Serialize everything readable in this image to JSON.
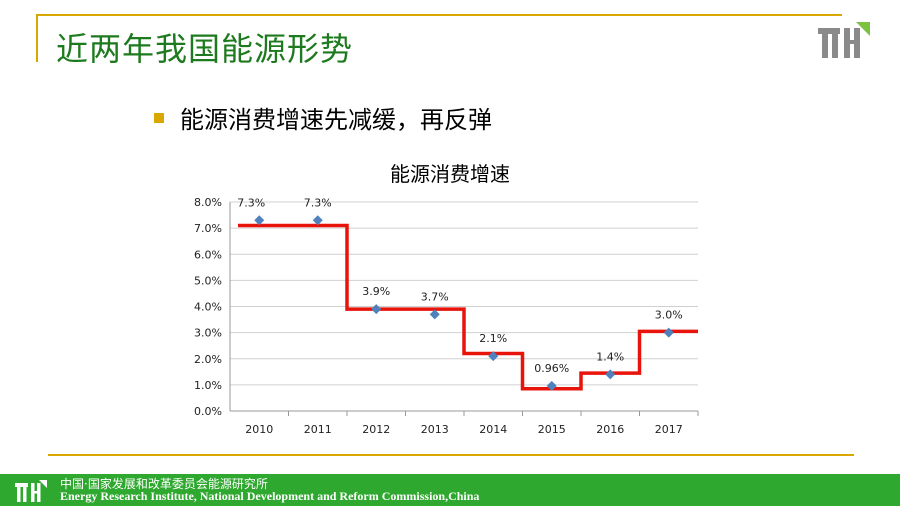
{
  "slide": {
    "title": "近两年我国能源形势",
    "bullet": "能源消费增速先减缓，再反弹"
  },
  "footer": {
    "cn": "中国·国家发展和改革委员会能源研究所",
    "en": "Energy Research Institute, National Development and Reform Commission,China"
  },
  "colors": {
    "title_green": "#1e7a1e",
    "accent_gold": "#d9a800",
    "footer_green": "#2ea82e",
    "point_blue": "#4f81bd",
    "step_red": "#e8140c"
  },
  "chart_data": {
    "type": "scatter",
    "title": "能源消费增速",
    "categories": [
      "2010",
      "2011",
      "2012",
      "2013",
      "2014",
      "2015",
      "2016",
      "2017"
    ],
    "values": [
      7.3,
      7.3,
      3.9,
      3.7,
      2.1,
      0.96,
      1.4,
      3.0
    ],
    "data_labels": [
      "7.3%",
      "7.3%",
      "3.9%",
      "3.7%",
      "2.1%",
      "0.96%",
      "1.4%",
      "3.0%"
    ],
    "step_overlay": [
      {
        "from": "2010",
        "to": "2011",
        "value": 7.1
      },
      {
        "from": "2012",
        "to": "2013",
        "value": 3.9
      },
      {
        "from": "2014",
        "to": "2014",
        "value": 2.2
      },
      {
        "from": "2015",
        "to": "2015",
        "value": 0.85
      },
      {
        "from": "2016",
        "to": "2016",
        "value": 1.45
      },
      {
        "from": "2017",
        "to": "2017",
        "value": 3.05
      }
    ],
    "y_ticks": [
      "0.0%",
      "1.0%",
      "2.0%",
      "3.0%",
      "4.0%",
      "5.0%",
      "6.0%",
      "7.0%",
      "8.0%"
    ],
    "ylim": [
      0,
      8
    ],
    "grid": true,
    "legend": "none"
  }
}
